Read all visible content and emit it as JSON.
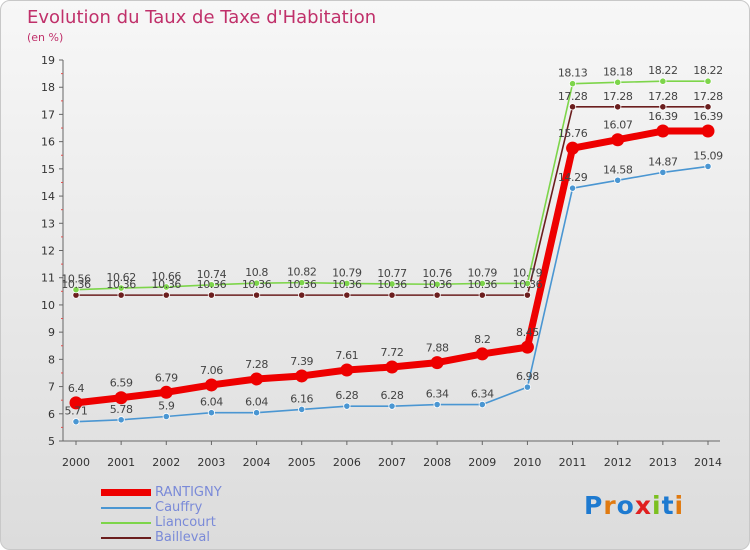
{
  "title": "Evolution du Taux de Taxe d'Habitation",
  "subtitle": "(en %)",
  "logo": "Proxiti",
  "chart_data": {
    "type": "line",
    "x": [
      2000,
      2001,
      2002,
      2003,
      2004,
      2005,
      2006,
      2007,
      2008,
      2009,
      2010,
      2011,
      2012,
      2013,
      2014
    ],
    "ylim": [
      5,
      19
    ],
    "yticks": [
      5,
      6,
      7,
      8,
      9,
      10,
      11,
      12,
      13,
      14,
      15,
      16,
      17,
      18,
      19
    ],
    "grid": false,
    "legend_position": "bottom-left",
    "series": [
      {
        "name": "Bailleval",
        "color": "#6b1e1e",
        "values": [
          10.36,
          10.36,
          10.36,
          10.36,
          10.36,
          10.36,
          10.36,
          10.36,
          10.36,
          10.36,
          10.36,
          17.28,
          17.28,
          17.28,
          17.28
        ],
        "labels": [
          "10.36",
          "10.36",
          "10.36",
          "10.36",
          "10.36",
          "10.36",
          "10.36",
          "10.36",
          "10.36",
          "10.36",
          "10.36",
          "17.28",
          "17.28",
          "17.28",
          "17.28"
        ]
      },
      {
        "name": "Liancourt",
        "color": "#7dd54a",
        "values": [
          10.56,
          10.62,
          10.66,
          10.74,
          10.8,
          10.82,
          10.79,
          10.77,
          10.76,
          10.79,
          10.79,
          18.13,
          18.18,
          18.22,
          18.22
        ],
        "labels": [
          "10.56",
          "10.62",
          "10.66",
          "10.74",
          "10.8",
          "10.82",
          "10.79",
          "10.77",
          "10.76",
          "10.79",
          "10.79",
          "18.13",
          "18.18",
          "18.22",
          "18.22"
        ]
      },
      {
        "name": "Cauffry",
        "color": "#4a96d2",
        "values": [
          5.71,
          5.78,
          5.9,
          6.04,
          6.04,
          6.16,
          6.28,
          6.28,
          6.34,
          6.34,
          6.98,
          14.29,
          14.58,
          14.87,
          15.09
        ],
        "labels": [
          "5.71",
          "5.78",
          "5.9",
          "6.04",
          "6.04",
          "6.16",
          "6.28",
          "6.28",
          "6.34",
          "6.34",
          "6.98",
          "14.29",
          "14.58",
          "14.87",
          "15.09"
        ]
      },
      {
        "name": "RANTIGNY",
        "color": "#ee0000",
        "values": [
          6.4,
          6.59,
          6.79,
          7.06,
          7.28,
          7.39,
          7.61,
          7.72,
          7.88,
          8.2,
          8.45,
          15.76,
          16.07,
          16.39,
          16.39
        ],
        "labels": [
          "6.4",
          "6.59",
          "6.79",
          "7.06",
          "7.28",
          "7.39",
          "7.61",
          "7.72",
          "7.88",
          "8.2",
          "8.45",
          "15.76",
          "16.07",
          "16.39",
          "16.39"
        ]
      }
    ]
  }
}
